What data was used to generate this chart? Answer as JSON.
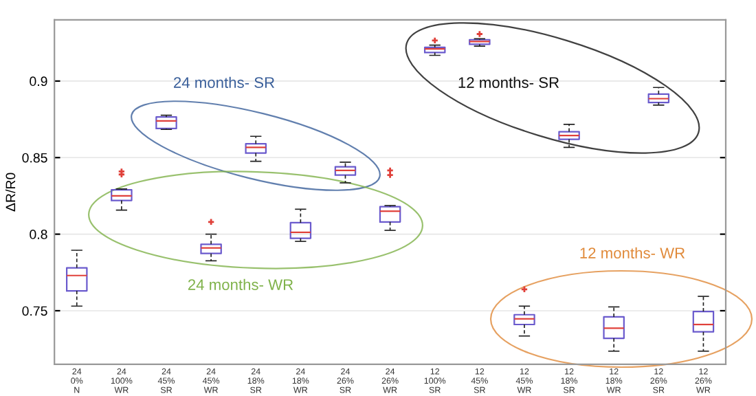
{
  "chart_data": {
    "type": "box",
    "ylabel": "ΔR/R0",
    "categories": [
      "24\n0%\nN",
      "24\n100%\nWR",
      "24\n45%\nSR",
      "24\n45%\nWR",
      "24\n18%\nSR",
      "24\n18%\nWR",
      "24\n26%\nSR",
      "24\n26%\nWR",
      "12\n100%\nSR",
      "12\n45%\nSR",
      "12\n45%\nWR",
      "12\n18%\nSR",
      "12\n18%\nWR",
      "12\n26%\nSR",
      "12\n26%\nWR"
    ],
    "boxes": [
      {
        "low": 0.753,
        "q1": 0.763,
        "median": 0.773,
        "q3": 0.778,
        "high": 0.7895
      },
      {
        "low": 0.8157,
        "q1": 0.822,
        "median": 0.825,
        "q3": 0.829,
        "high": 0.8295,
        "outliers": [
          0.841,
          0.839
        ]
      },
      {
        "low": 0.8684,
        "q1": 0.869,
        "median": 0.874,
        "q3": 0.8765,
        "high": 0.8777
      },
      {
        "low": 0.7826,
        "q1": 0.7874,
        "median": 0.791,
        "q3": 0.7934,
        "high": 0.8,
        "outliers": [
          0.808
        ]
      },
      {
        "low": 0.8476,
        "q1": 0.853,
        "median": 0.8567,
        "q3": 0.859,
        "high": 0.8639
      },
      {
        "low": 0.7953,
        "q1": 0.7973,
        "median": 0.8012,
        "q3": 0.8075,
        "high": 0.8163
      },
      {
        "low": 0.8335,
        "q1": 0.8386,
        "median": 0.8416,
        "q3": 0.844,
        "high": 0.847
      },
      {
        "low": 0.8025,
        "q1": 0.808,
        "median": 0.815,
        "q3": 0.818,
        "high": 0.8187,
        "outliers": [
          0.8416,
          0.8386
        ]
      },
      {
        "low": 0.9168,
        "q1": 0.9186,
        "median": 0.921,
        "q3": 0.922,
        "high": 0.9235,
        "outliers": [
          0.9265
        ]
      },
      {
        "low": 0.9228,
        "q1": 0.924,
        "median": 0.9258,
        "q3": 0.927,
        "high": 0.9276,
        "outliers": [
          0.9307
        ]
      },
      {
        "low": 0.7335,
        "q1": 0.741,
        "median": 0.7447,
        "q3": 0.7474,
        "high": 0.753,
        "outliers": [
          0.764
        ]
      },
      {
        "low": 0.8567,
        "q1": 0.862,
        "median": 0.8644,
        "q3": 0.8669,
        "high": 0.8717
      },
      {
        "low": 0.7236,
        "q1": 0.732,
        "median": 0.7386,
        "q3": 0.746,
        "high": 0.7525
      },
      {
        "low": 0.8843,
        "q1": 0.886,
        "median": 0.8885,
        "q3": 0.8915,
        "high": 0.8958
      },
      {
        "low": 0.7236,
        "q1": 0.7362,
        "median": 0.741,
        "q3": 0.7495,
        "high": 0.7594
      }
    ],
    "color": "#6a5acd",
    "ylim": [
      0.715,
      0.94
    ],
    "yticks": [
      0.75,
      0.8,
      0.85,
      0.9
    ],
    "grid": "y",
    "annotations": [
      "24 months- SR",
      "12 months- SR",
      "24 months- WR",
      "12 months- WR"
    ]
  }
}
